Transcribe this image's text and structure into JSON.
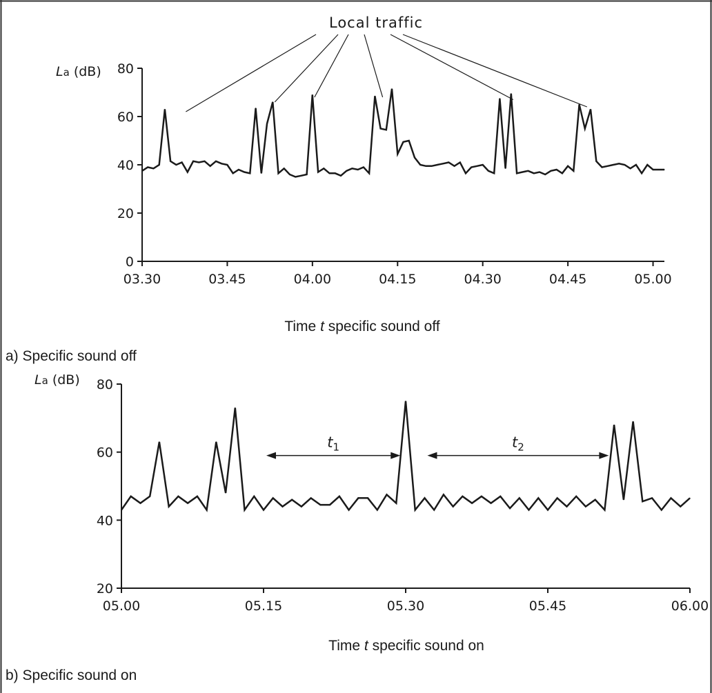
{
  "chart_data": [
    {
      "type": "line",
      "panel": "a",
      "caption": "a) Specific sound off",
      "xlabel_prefix": "Time ",
      "xlabel_var": "t",
      "xlabel_suffix": " specific sound off",
      "ylabel_var": "L",
      "ylabel_sub": "a",
      "ylabel_unit": " (dB)",
      "xlim": [
        "03.30",
        "05.02"
      ],
      "ylim": [
        0,
        80
      ],
      "yticks": [
        0,
        20,
        40,
        60,
        80
      ],
      "xticks": [
        "03.30",
        "03.45",
        "04.00",
        "04.15",
        "04.30",
        "04.45",
        "05.00"
      ],
      "grid": false,
      "annotation": {
        "label": "Local traffic",
        "targets": [
          {
            "x": "03.36",
            "y": 62
          },
          {
            "x": "03.53",
            "y": 66
          },
          {
            "x": "04.00",
            "y": 68
          },
          {
            "x": "04.12",
            "y": 68
          },
          {
            "x": "04.35",
            "y": 67
          },
          {
            "x": "04.48",
            "y": 64
          }
        ]
      },
      "series": [
        {
          "points": [
            [
              "03.30",
              37.5
            ],
            [
              "03.31",
              39
            ],
            [
              "03.32",
              38.5
            ],
            [
              "03.33",
              40
            ],
            [
              "03.34",
              63
            ],
            [
              "03.35",
              41.5
            ],
            [
              "03.36",
              40
            ],
            [
              "03.37",
              41
            ],
            [
              "03.38",
              37
            ],
            [
              "03.39",
              41.5
            ],
            [
              "03.40",
              41
            ],
            [
              "03.41",
              41.5
            ],
            [
              "03.42",
              39.5
            ],
            [
              "03.43",
              41.5
            ],
            [
              "03.44",
              40.5
            ],
            [
              "03.45",
              40
            ],
            [
              "03.46",
              36.5
            ],
            [
              "03.47",
              38
            ],
            [
              "03.48",
              37
            ],
            [
              "03.49",
              36.5
            ],
            [
              "03.50",
              63.5
            ],
            [
              "03.51",
              36.5
            ],
            [
              "03.52",
              57
            ],
            [
              "03.53",
              66
            ],
            [
              "03.54",
              36.5
            ],
            [
              "03.55",
              38.5
            ],
            [
              "03.56",
              36
            ],
            [
              "03.57",
              35
            ],
            [
              "03.58",
              35.5
            ],
            [
              "03.59",
              36
            ],
            [
              "04.00",
              69
            ],
            [
              "04.01",
              37
            ],
            [
              "04.02",
              38.5
            ],
            [
              "04.03",
              36.5
            ],
            [
              "04.04",
              36.5
            ],
            [
              "04.05",
              35.5
            ],
            [
              "04.06",
              37.5
            ],
            [
              "04.07",
              38.5
            ],
            [
              "04.08",
              38
            ],
            [
              "04.09",
              39
            ],
            [
              "04.10",
              36.5
            ],
            [
              "04.11",
              68.5
            ],
            [
              "04.12",
              55
            ],
            [
              "04.13",
              54.5
            ],
            [
              "04.14",
              71.5
            ],
            [
              "04.15",
              44.5
            ],
            [
              "04.16",
              49.5
            ],
            [
              "04.17",
              50
            ],
            [
              "04.18",
              43
            ],
            [
              "04.19",
              40
            ],
            [
              "04.20",
              39.5
            ],
            [
              "04.21",
              39.5
            ],
            [
              "04.22",
              40
            ],
            [
              "04.23",
              40.5
            ],
            [
              "04.24",
              41
            ],
            [
              "04.25",
              39.5
            ],
            [
              "04.26",
              41
            ],
            [
              "04.27",
              36.5
            ],
            [
              "04.28",
              39
            ],
            [
              "04.29",
              39.5
            ],
            [
              "04.30",
              40
            ],
            [
              "04.31",
              37.5
            ],
            [
              "04.32",
              36.5
            ],
            [
              "04.33",
              67.5
            ],
            [
              "04.34",
              38.5
            ],
            [
              "04.35",
              69.5
            ],
            [
              "04.36",
              36.5
            ],
            [
              "04.37",
              37
            ],
            [
              "04.38",
              37.5
            ],
            [
              "04.39",
              36.5
            ],
            [
              "04.40",
              37
            ],
            [
              "04.41",
              36
            ],
            [
              "04.42",
              37.5
            ],
            [
              "04.43",
              38
            ],
            [
              "04.44",
              36.5
            ],
            [
              "04.45",
              39.5
            ],
            [
              "04.46",
              37.5
            ],
            [
              "04.47",
              65
            ],
            [
              "04.48",
              55
            ],
            [
              "04.49",
              63
            ],
            [
              "04.50",
              41.5
            ],
            [
              "04.51",
              39
            ],
            [
              "04.52",
              39.5
            ],
            [
              "04.53",
              40
            ],
            [
              "04.54",
              40.5
            ],
            [
              "04.55",
              40
            ],
            [
              "04.56",
              38.5
            ],
            [
              "04.57",
              40
            ],
            [
              "04.58",
              36.5
            ],
            [
              "04.59",
              40
            ],
            [
              "05.00",
              38
            ],
            [
              "05.01",
              38
            ],
            [
              "05.02",
              38
            ]
          ]
        }
      ]
    },
    {
      "type": "line",
      "panel": "b",
      "caption": "b) Specific sound on",
      "xlabel_prefix": "Time ",
      "xlabel_var": "t",
      "xlabel_suffix": " specific sound on",
      "ylabel_var": "L",
      "ylabel_sub": "a",
      "ylabel_unit": " (dB)",
      "xlim": [
        "05.00",
        "06.00"
      ],
      "ylim": [
        20,
        80
      ],
      "yticks": [
        20,
        40,
        60,
        80
      ],
      "xticks": [
        "05.00",
        "05.15",
        "05.30",
        "05.45",
        "06.00"
      ],
      "grid": false,
      "intervals": [
        {
          "label_var": "t",
          "label_sub": "1",
          "from": "05.15",
          "to": "05.29",
          "y": 60
        },
        {
          "label_var": "t",
          "label_sub": "2",
          "from": "05.32",
          "to": "05.51",
          "y": 60
        }
      ],
      "series": [
        {
          "points": [
            [
              "05.00",
              43
            ],
            [
              "05.01",
              47
            ],
            [
              "05.02",
              45
            ],
            [
              "05.03",
              47
            ],
            [
              "05.04",
              63
            ],
            [
              "05.05",
              44
            ],
            [
              "05.06",
              47
            ],
            [
              "05.07",
              45
            ],
            [
              "05.08",
              47
            ],
            [
              "05.09",
              43
            ],
            [
              "05.10",
              63
            ],
            [
              "05.11",
              48
            ],
            [
              "05.12",
              73
            ],
            [
              "05.13",
              43
            ],
            [
              "05.14",
              47
            ],
            [
              "05.15",
              43
            ],
            [
              "05.16",
              46.5
            ],
            [
              "05.17",
              44
            ],
            [
              "05.18",
              46
            ],
            [
              "05.19",
              44
            ],
            [
              "05.20",
              46.5
            ],
            [
              "05.21",
              44.5
            ],
            [
              "05.22",
              44.5
            ],
            [
              "05.23",
              47
            ],
            [
              "05.24",
              43
            ],
            [
              "05.25",
              46.5
            ],
            [
              "05.26",
              46.5
            ],
            [
              "05.27",
              43
            ],
            [
              "05.28",
              47.5
            ],
            [
              "05.29",
              45
            ],
            [
              "05.30",
              75
            ],
            [
              "05.31",
              43
            ],
            [
              "05.32",
              46.5
            ],
            [
              "05.33",
              43
            ],
            [
              "05.34",
              47.5
            ],
            [
              "05.35",
              44
            ],
            [
              "05.36",
              47
            ],
            [
              "05.37",
              45
            ],
            [
              "05.38",
              47
            ],
            [
              "05.39",
              45
            ],
            [
              "05.40",
              47
            ],
            [
              "05.41",
              43.5
            ],
            [
              "05.42",
              46.5
            ],
            [
              "05.43",
              43
            ],
            [
              "05.44",
              46.5
            ],
            [
              "05.45",
              43
            ],
            [
              "05.46",
              46.5
            ],
            [
              "05.47",
              44
            ],
            [
              "05.48",
              47
            ],
            [
              "05.49",
              44
            ],
            [
              "05.50",
              46
            ],
            [
              "05.51",
              43
            ],
            [
              "05.52",
              68
            ],
            [
              "05.53",
              46
            ],
            [
              "05.54",
              69
            ],
            [
              "05.55",
              45.5
            ],
            [
              "05.56",
              46.5
            ],
            [
              "05.57",
              43
            ],
            [
              "05.58",
              46.5
            ],
            [
              "05.59",
              44
            ],
            [
              "06.00",
              46.5
            ]
          ]
        }
      ]
    }
  ]
}
